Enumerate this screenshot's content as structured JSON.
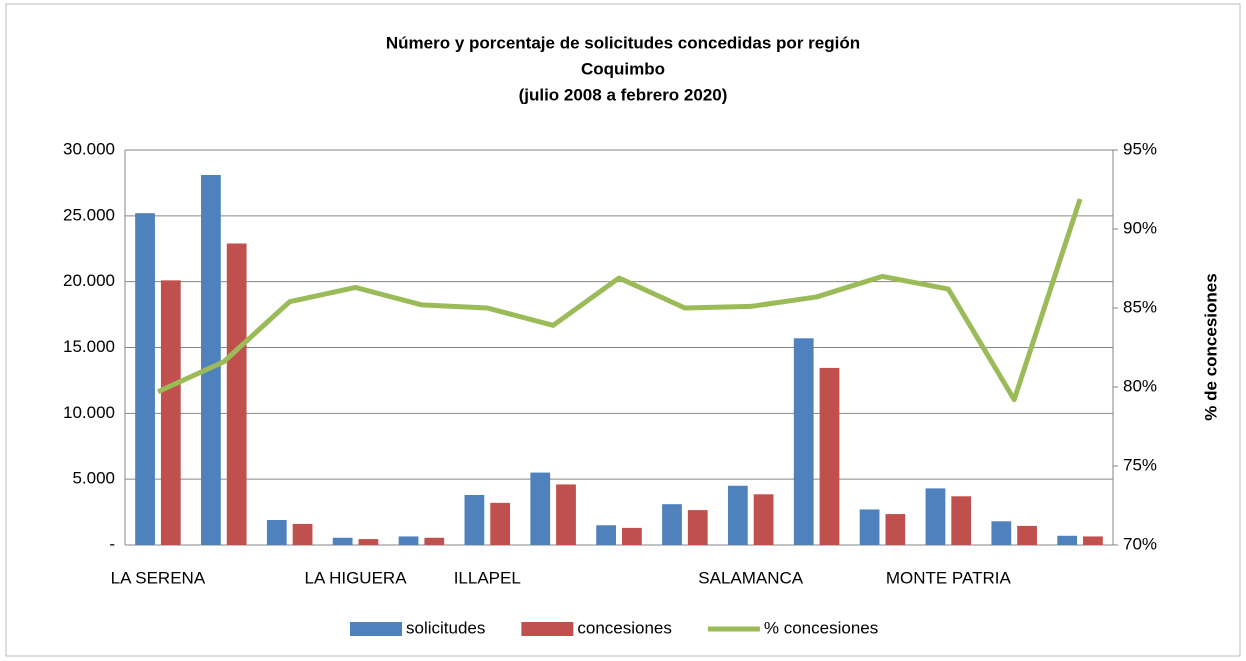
{
  "chart_data": {
    "type": "bar_line",
    "title": [
      "Número y porcentaje de solicitudes concedidas por región",
      "Coquimbo",
      "(julio 2008 a febrero 2020)"
    ],
    "y2label": "% de concesiones",
    "categories": [
      "LA SERENA",
      null,
      null,
      "LA HIGUERA",
      null,
      "ILLAPEL",
      null,
      null,
      null,
      "SALAMANCA",
      null,
      null,
      "MONTE PATRIA",
      null,
      null
    ],
    "series": [
      {
        "name": "solicitudes",
        "color": "#4f81bd",
        "type": "bar",
        "values": [
          25200,
          28100,
          1900,
          550,
          650,
          3800,
          5500,
          1500,
          3100,
          4500,
          15700,
          2700,
          4300,
          1800,
          700
        ]
      },
      {
        "name": "concesiones",
        "color": "#c0504d",
        "type": "bar",
        "values": [
          20100,
          22900,
          1600,
          450,
          550,
          3200,
          4600,
          1300,
          2650,
          3850,
          13450,
          2350,
          3700,
          1450,
          650
        ]
      },
      {
        "name": "% concesiones",
        "color": "#9bbb59",
        "type": "line",
        "axis": "y2",
        "values": [
          79.7,
          81.6,
          85.4,
          86.3,
          85.2,
          85.0,
          83.9,
          86.9,
          85.0,
          85.1,
          85.7,
          87.0,
          86.2,
          79.2,
          91.9
        ]
      }
    ],
    "ylim": [
      0,
      30000
    ],
    "yticks": [
      {
        "value": 0,
        "label": "-"
      },
      {
        "value": 5000,
        "label": "5.000"
      },
      {
        "value": 10000,
        "label": "10.000"
      },
      {
        "value": 15000,
        "label": "15.000"
      },
      {
        "value": 20000,
        "label": "20.000"
      },
      {
        "value": 25000,
        "label": "25.000"
      },
      {
        "value": 30000,
        "label": "30.000"
      }
    ],
    "y2lim": [
      70,
      95
    ],
    "y2ticks": [
      {
        "value": 70,
        "label": "70%"
      },
      {
        "value": 75,
        "label": "75%"
      },
      {
        "value": 80,
        "label": "80%"
      },
      {
        "value": 85,
        "label": "85%"
      },
      {
        "value": 90,
        "label": "90%"
      },
      {
        "value": 95,
        "label": "95%"
      }
    ],
    "grid": true,
    "legend": "bottom"
  }
}
